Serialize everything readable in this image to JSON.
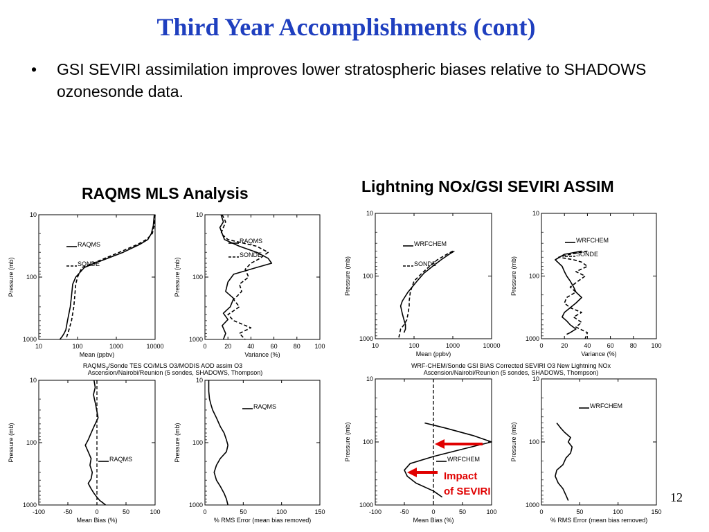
{
  "slide": {
    "title": "Third Year Accomplishments (cont)",
    "bullet": "GSI SEVIRI assimilation improves lower stratospheric biases relative to SHADOWS ozonesonde data.",
    "bullet_symbol": "•",
    "left_heading": "RAQMS MLS Analysis",
    "right_heading": "Lightning NOx/GSI SEVIRI ASSIM",
    "page_number": "12"
  },
  "captions": {
    "left_line1": "RAQMS",
    "left_sub": "3",
    "left_line1_rest": "/Sonde TES CO/MLS O3/MODIS AOD assim O3",
    "left_line2": "Ascension/Nairobi/Reunion (5 sondes, SHADOWS, Thompson)",
    "right_line1": "WRF-CHEM/Sonde GSI BIAS Corrected SEVIRI O3 New Lightning NOx",
    "right_line2": "Ascension/Nairobi/Reunion (5 sondes, SHADOWS, Thompson)"
  },
  "annotation": {
    "text_line1": "Impact",
    "text_line2": "of SEVIRI",
    "arrow_color": "#e00000"
  },
  "chart_data": [
    {
      "id": "raqms-mean",
      "type": "line",
      "ylabel": "Pressure (mb)",
      "xlabel": "Mean (ppbv)",
      "xscale": "log",
      "xlim": [
        10,
        10000
      ],
      "xticks": [
        10,
        100,
        1000,
        10000
      ],
      "xticklabels": [
        "10",
        "100",
        "1000",
        "10000"
      ],
      "yscale": "log",
      "ylim": [
        1000,
        10
      ],
      "yticks": [
        10,
        100,
        1000
      ],
      "yticklabels": [
        "10",
        "100",
        "1000"
      ],
      "series": [
        {
          "name": "RAQMS",
          "style": "solid",
          "x": [
            9500,
            9000,
            8000,
            6500,
            4000,
            1500,
            400,
            150,
            90,
            75,
            70,
            65,
            55,
            50,
            45,
            40,
            35
          ],
          "y": [
            10,
            15,
            20,
            25,
            30,
            40,
            55,
            70,
            100,
            130,
            200,
            300,
            500,
            700,
            800,
            900,
            1000
          ]
        },
        {
          "name": "SONDE",
          "style": "dashed",
          "x": [
            10000,
            9500,
            8500,
            6000,
            3500,
            1200,
            350,
            130,
            100,
            90,
            85,
            80,
            70,
            60,
            50
          ],
          "y": [
            10,
            15,
            20,
            25,
            30,
            40,
            55,
            70,
            100,
            130,
            200,
            300,
            500,
            700,
            1000
          ]
        }
      ]
    },
    {
      "id": "raqms-var",
      "type": "line",
      "ylabel": "Pressure (mb)",
      "xlabel": "Variance (%)",
      "xscale": "linear",
      "xlim": [
        0,
        100
      ],
      "xticks": [
        0,
        20,
        40,
        60,
        80,
        100
      ],
      "xticklabels": [
        "0",
        "20",
        "40",
        "60",
        "80",
        "100"
      ],
      "yscale": "log",
      "ylim": [
        1000,
        10
      ],
      "yticks": [
        10,
        100,
        1000
      ],
      "yticklabels": [
        "10",
        "100",
        "1000"
      ],
      "series": [
        {
          "name": "RAQMS",
          "style": "solid",
          "x": [
            14,
            16,
            13,
            15,
            17,
            30,
            45,
            55,
            58,
            45,
            25,
            20,
            18,
            25,
            22,
            16,
            20,
            15,
            18,
            16
          ],
          "y": [
            10,
            13,
            16,
            20,
            25,
            32,
            40,
            50,
            60,
            70,
            90,
            120,
            170,
            220,
            300,
            380,
            480,
            600,
            800,
            1000
          ]
        },
        {
          "name": "SONDE",
          "style": "dashed",
          "x": [
            15,
            18,
            16,
            14,
            20,
            45,
            55,
            48,
            40,
            35,
            38,
            30,
            32,
            25,
            30,
            20,
            25,
            40,
            30,
            35
          ],
          "y": [
            10,
            13,
            16,
            20,
            25,
            32,
            40,
            50,
            60,
            75,
            100,
            130,
            170,
            230,
            300,
            400,
            500,
            650,
            800,
            1000
          ]
        }
      ]
    },
    {
      "id": "wrf-mean",
      "type": "line",
      "ylabel": "Pressure (mb)",
      "xlabel": "Mean (ppbv)",
      "xscale": "log",
      "xlim": [
        10,
        10000
      ],
      "xticks": [
        10,
        100,
        1000,
        10000
      ],
      "xticklabels": [
        "10",
        "100",
        "1000",
        "10000"
      ],
      "yscale": "log",
      "ylim": [
        1000,
        10
      ],
      "yticks": [
        10,
        100,
        1000
      ],
      "yticklabels": [
        "10",
        "100",
        "1000"
      ],
      "series": [
        {
          "name": "WRFCHEM",
          "style": "solid",
          "x": [
            1100,
            800,
            500,
            300,
            180,
            120,
            70,
            50,
            45,
            50,
            55,
            60,
            60,
            55
          ],
          "y": [
            40,
            45,
            55,
            70,
            90,
            120,
            180,
            250,
            300,
            400,
            500,
            600,
            700,
            800
          ]
        },
        {
          "name": "SONDE",
          "style": "dashed",
          "x": [
            1000,
            700,
            400,
            250,
            160,
            100,
            80,
            75,
            75,
            70,
            65,
            55,
            45,
            40
          ],
          "y": [
            40,
            45,
            55,
            70,
            90,
            120,
            180,
            250,
            300,
            400,
            500,
            600,
            700,
            1000
          ]
        }
      ]
    },
    {
      "id": "wrf-var",
      "type": "line",
      "ylabel": "Pressure (mb)",
      "xlabel": "Variance (%)",
      "xscale": "linear",
      "xlim": [
        0,
        100
      ],
      "xticks": [
        0,
        20,
        40,
        60,
        80,
        100
      ],
      "xticklabels": [
        "0",
        "20",
        "40",
        "60",
        "80",
        "100"
      ],
      "yscale": "log",
      "ylim": [
        1000,
        10
      ],
      "yticks": [
        10,
        100,
        1000
      ],
      "yticklabels": [
        "10",
        "100",
        "1000"
      ],
      "series": [
        {
          "name": "WRFCHEM",
          "style": "solid",
          "x": [
            35,
            20,
            12,
            18,
            20,
            22,
            25,
            28,
            30,
            35,
            30,
            25,
            20,
            18,
            22,
            25,
            30,
            25,
            22
          ],
          "y": [
            40,
            45,
            55,
            70,
            85,
            100,
            120,
            150,
            180,
            220,
            270,
            320,
            380,
            450,
            520,
            600,
            700,
            800,
            850
          ]
        },
        {
          "name": "SONDE",
          "style": "dashed",
          "x": [
            40,
            25,
            15,
            28,
            35,
            40,
            30,
            38,
            32,
            25,
            30,
            22,
            20,
            25,
            35,
            28,
            35,
            30,
            40,
            38
          ],
          "y": [
            40,
            45,
            50,
            55,
            60,
            70,
            85,
            100,
            120,
            150,
            180,
            220,
            270,
            320,
            380,
            450,
            550,
            650,
            800,
            1000
          ]
        }
      ]
    },
    {
      "id": "raqms-bias",
      "type": "line",
      "ylabel": "Pressure (mb)",
      "xlabel": "Mean Bias (%)",
      "xscale": "linear",
      "xlim": [
        -100,
        100
      ],
      "xticks": [
        -100,
        -50,
        0,
        50,
        100
      ],
      "xticklabels": [
        "-100",
        "-50",
        "0",
        "50",
        "100"
      ],
      "yscale": "log",
      "ylim": [
        1000,
        10
      ],
      "yticks": [
        10,
        100,
        1000
      ],
      "yticklabels": [
        "10",
        "100",
        "1000"
      ],
      "zero_line": true,
      "series": [
        {
          "name": "RAQMS",
          "style": "solid",
          "x": [
            -5,
            -3,
            -6,
            -2,
            2,
            -5,
            -10,
            -15,
            -20,
            -15,
            -10,
            -12,
            -8,
            -10,
            -15,
            -10,
            -5,
            0,
            5,
            10,
            15
          ],
          "y": [
            10,
            13,
            17,
            25,
            40,
            55,
            70,
            90,
            110,
            140,
            180,
            230,
            300,
            380,
            450,
            550,
            650,
            750,
            850,
            920,
            1000
          ]
        }
      ]
    },
    {
      "id": "raqms-rms",
      "type": "line",
      "ylabel": "Pressure (mb)",
      "xlabel": "% RMS Error (mean bias removed)",
      "xscale": "linear",
      "xlim": [
        0,
        150
      ],
      "xticks": [
        0,
        50,
        100,
        150
      ],
      "xticklabels": [
        "0",
        "50",
        "100",
        "150"
      ],
      "yscale": "log",
      "ylim": [
        1000,
        10
      ],
      "yticks": [
        10,
        100,
        1000
      ],
      "yticklabels": [
        "10",
        "100",
        "1000"
      ],
      "series": [
        {
          "name": "RAQMS",
          "style": "solid",
          "x": [
            5,
            5,
            6,
            8,
            10,
            15,
            20,
            25,
            28,
            30,
            28,
            20,
            15,
            12,
            15,
            20,
            25,
            28,
            30
          ],
          "y": [
            10,
            15,
            20,
            25,
            30,
            40,
            55,
            70,
            90,
            110,
            140,
            180,
            230,
            300,
            400,
            500,
            650,
            800,
            1000
          ]
        }
      ]
    },
    {
      "id": "wrf-bias",
      "type": "line",
      "ylabel": "Pressure (mb)",
      "xlabel": "Mean Bias (%)",
      "xscale": "linear",
      "xlim": [
        -100,
        100
      ],
      "xticks": [
        -100,
        -50,
        0,
        50,
        100
      ],
      "xticklabels": [
        "-100",
        "-50",
        "0",
        "50",
        "100"
      ],
      "yscale": "log",
      "ylim": [
        1000,
        10
      ],
      "yticks": [
        10,
        100,
        1000
      ],
      "yticklabels": [
        "10",
        "100",
        "1000"
      ],
      "zero_line": true,
      "series": [
        {
          "name": "WRFCHEM",
          "style": "solid",
          "x": [
            -15,
            20,
            70,
            100,
            50,
            0,
            -40,
            -50,
            -45,
            -30,
            0,
            15
          ],
          "y": [
            50,
            60,
            80,
            100,
            130,
            170,
            220,
            280,
            350,
            450,
            600,
            750
          ]
        }
      ]
    },
    {
      "id": "wrf-rms",
      "type": "line",
      "ylabel": "Pressure (mb)",
      "xlabel": "% RMS Error (mean bias removed)",
      "xscale": "linear",
      "xlim": [
        0,
        150
      ],
      "xticks": [
        0,
        50,
        100,
        150
      ],
      "xticklabels": [
        "0",
        "50",
        "100",
        "150"
      ],
      "yscale": "log",
      "ylim": [
        1000,
        10
      ],
      "yticks": [
        10,
        100,
        1000
      ],
      "yticklabels": [
        "10",
        "100",
        "1000"
      ],
      "series": [
        {
          "name": "WRFCHEM",
          "style": "solid",
          "x": [
            20,
            25,
            30,
            38,
            35,
            40,
            38,
            32,
            28,
            20,
            18,
            22,
            28,
            32,
            35
          ],
          "y": [
            50,
            60,
            70,
            85,
            100,
            120,
            150,
            180,
            230,
            280,
            350,
            450,
            550,
            700,
            850
          ]
        }
      ]
    }
  ]
}
